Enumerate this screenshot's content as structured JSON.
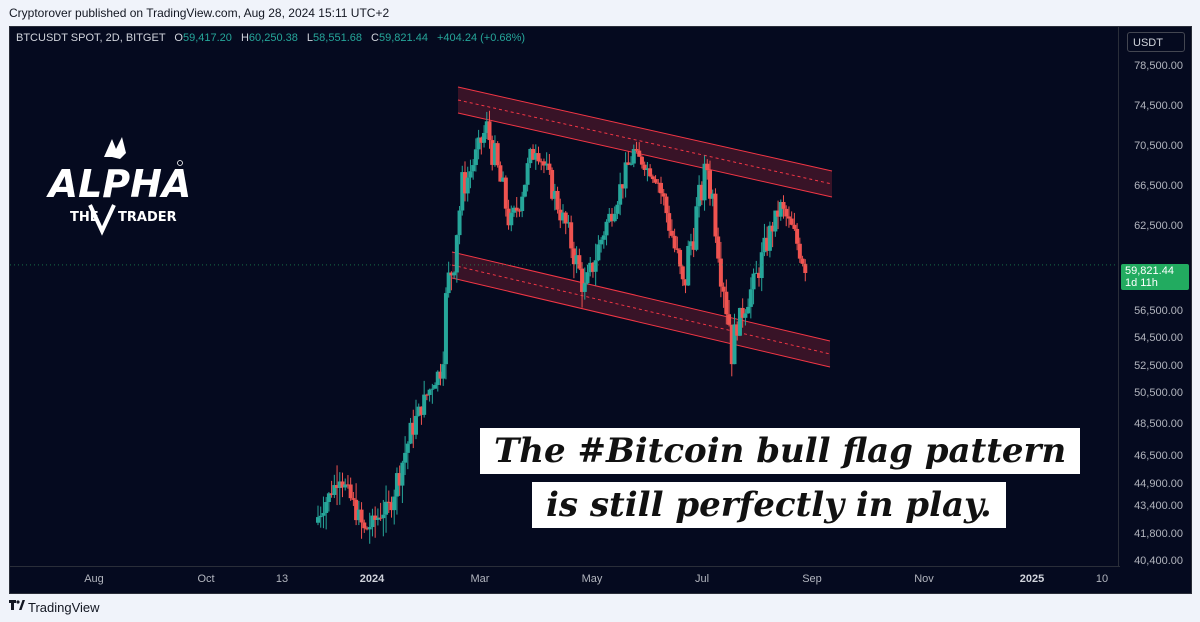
{
  "header": {
    "published": "Cryptorover published on TradingView.com, Aug 28, 2024 15:11 UTC+2"
  },
  "legend": {
    "symbol": "BTCUSDT SPOT, 2D, BITGET",
    "open_label": "O",
    "open": "59,417.20",
    "high_label": "H",
    "high": "60,250.38",
    "low_label": "L",
    "low": "58,551.68",
    "close_label": "C",
    "close": "59,821.44",
    "change": "+404.24 (+0.68%)"
  },
  "price_scale": {
    "currency": "USDT",
    "ticks": [
      "78,500.00",
      "74,500.00",
      "70,500.00",
      "66,500.00",
      "62,500.00",
      "56,500.00",
      "54,500.00",
      "52,500.00",
      "50,500.00",
      "48,500.00",
      "46,500.00",
      "44,900.00",
      "43,400.00",
      "41,800.00",
      "40,400.00"
    ],
    "last_price": "59,821.44",
    "countdown": "1d 11h"
  },
  "time_scale": {
    "ticks": [
      "Aug",
      "Oct",
      "13",
      "2024",
      "Mar",
      "May",
      "Jul",
      "Sep",
      "Nov",
      "2025",
      "10"
    ]
  },
  "logo": {
    "alpha": "ALPHA",
    "the": "THE",
    "trader": "TRADER"
  },
  "caption": {
    "line1": "The #Bitcoin bull flag pattern",
    "line2": "is still perfectly in play."
  },
  "footer": {
    "brand": "TradingView"
  },
  "colors": {
    "up": "#26a69a",
    "down": "#ef5350",
    "channel": "#f23645",
    "background": "#050a1f"
  },
  "chart_data": {
    "type": "candlestick",
    "symbol": "BTCUSDT SPOT, 2D, BITGET",
    "last_close": 59821.44,
    "anchors": [
      {
        "price": 42500,
        "trend": "up"
      },
      {
        "price": 45500,
        "trend": "up"
      },
      {
        "price": 42000,
        "trend": "down"
      },
      {
        "price": 43500,
        "trend": "up"
      },
      {
        "price": 48500,
        "trend": "up"
      },
      {
        "price": 52000,
        "trend": "up"
      },
      {
        "price": 66000,
        "trend": "up"
      },
      {
        "price": 72500,
        "trend": "up"
      },
      {
        "price": 62500,
        "trend": "down"
      },
      {
        "price": 71000,
        "trend": "up"
      },
      {
        "price": 64000,
        "trend": "down"
      },
      {
        "price": 58000,
        "trend": "down"
      },
      {
        "price": 63500,
        "trend": "up"
      },
      {
        "price": 70000,
        "trend": "up"
      },
      {
        "price": 67000,
        "trend": "down"
      },
      {
        "price": 58000,
        "trend": "down"
      },
      {
        "price": 68500,
        "trend": "up"
      },
      {
        "price": 54500,
        "trend": "down"
      },
      {
        "price": 59000,
        "trend": "up"
      },
      {
        "price": 64500,
        "trend": "up"
      },
      {
        "price": 59800,
        "trend": "down"
      }
    ],
    "channels": [
      {
        "name": "upper",
        "from_price": 75500,
        "to_price": 67500
      },
      {
        "name": "lower",
        "from_price": 61000,
        "to_price": 53500
      }
    ],
    "ylim": [
      40000,
      80000
    ]
  }
}
